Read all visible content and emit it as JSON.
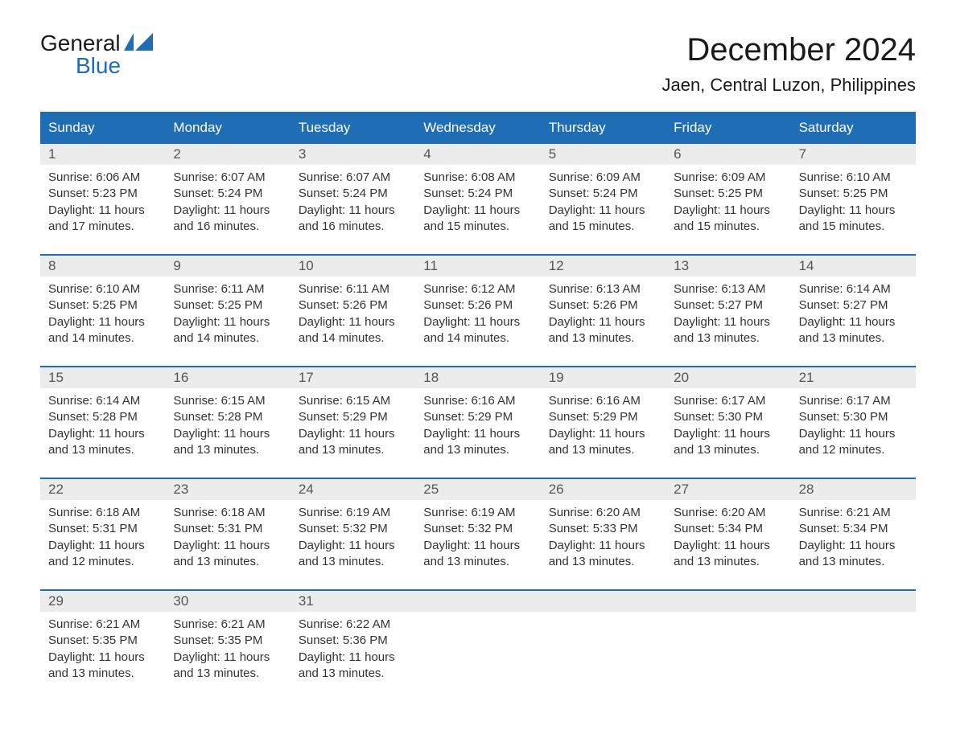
{
  "logo": {
    "text_top": "General",
    "text_bottom": "Blue",
    "icon_color": "#1f6db5"
  },
  "title": "December 2024",
  "location": "Jaen, Central Luzon, Philippines",
  "colors": {
    "header_bg": "#1f6db5",
    "header_text": "#ffffff",
    "daynum_bg": "#ececec",
    "daynum_text": "#555555",
    "body_text": "#333333",
    "divider": "#1f6db5",
    "page_bg": "#ffffff"
  },
  "day_names": [
    "Sunday",
    "Monday",
    "Tuesday",
    "Wednesday",
    "Thursday",
    "Friday",
    "Saturday"
  ],
  "weeks": [
    {
      "days": [
        {
          "num": "1",
          "sunrise": "6:06 AM",
          "sunset": "5:23 PM",
          "daylight": "11 hours and 17 minutes."
        },
        {
          "num": "2",
          "sunrise": "6:07 AM",
          "sunset": "5:24 PM",
          "daylight": "11 hours and 16 minutes."
        },
        {
          "num": "3",
          "sunrise": "6:07 AM",
          "sunset": "5:24 PM",
          "daylight": "11 hours and 16 minutes."
        },
        {
          "num": "4",
          "sunrise": "6:08 AM",
          "sunset": "5:24 PM",
          "daylight": "11 hours and 15 minutes."
        },
        {
          "num": "5",
          "sunrise": "6:09 AM",
          "sunset": "5:24 PM",
          "daylight": "11 hours and 15 minutes."
        },
        {
          "num": "6",
          "sunrise": "6:09 AM",
          "sunset": "5:25 PM",
          "daylight": "11 hours and 15 minutes."
        },
        {
          "num": "7",
          "sunrise": "6:10 AM",
          "sunset": "5:25 PM",
          "daylight": "11 hours and 15 minutes."
        }
      ]
    },
    {
      "days": [
        {
          "num": "8",
          "sunrise": "6:10 AM",
          "sunset": "5:25 PM",
          "daylight": "11 hours and 14 minutes."
        },
        {
          "num": "9",
          "sunrise": "6:11 AM",
          "sunset": "5:25 PM",
          "daylight": "11 hours and 14 minutes."
        },
        {
          "num": "10",
          "sunrise": "6:11 AM",
          "sunset": "5:26 PM",
          "daylight": "11 hours and 14 minutes."
        },
        {
          "num": "11",
          "sunrise": "6:12 AM",
          "sunset": "5:26 PM",
          "daylight": "11 hours and 14 minutes."
        },
        {
          "num": "12",
          "sunrise": "6:13 AM",
          "sunset": "5:26 PM",
          "daylight": "11 hours and 13 minutes."
        },
        {
          "num": "13",
          "sunrise": "6:13 AM",
          "sunset": "5:27 PM",
          "daylight": "11 hours and 13 minutes."
        },
        {
          "num": "14",
          "sunrise": "6:14 AM",
          "sunset": "5:27 PM",
          "daylight": "11 hours and 13 minutes."
        }
      ]
    },
    {
      "days": [
        {
          "num": "15",
          "sunrise": "6:14 AM",
          "sunset": "5:28 PM",
          "daylight": "11 hours and 13 minutes."
        },
        {
          "num": "16",
          "sunrise": "6:15 AM",
          "sunset": "5:28 PM",
          "daylight": "11 hours and 13 minutes."
        },
        {
          "num": "17",
          "sunrise": "6:15 AM",
          "sunset": "5:29 PM",
          "daylight": "11 hours and 13 minutes."
        },
        {
          "num": "18",
          "sunrise": "6:16 AM",
          "sunset": "5:29 PM",
          "daylight": "11 hours and 13 minutes."
        },
        {
          "num": "19",
          "sunrise": "6:16 AM",
          "sunset": "5:29 PM",
          "daylight": "11 hours and 13 minutes."
        },
        {
          "num": "20",
          "sunrise": "6:17 AM",
          "sunset": "5:30 PM",
          "daylight": "11 hours and 13 minutes."
        },
        {
          "num": "21",
          "sunrise": "6:17 AM",
          "sunset": "5:30 PM",
          "daylight": "11 hours and 12 minutes."
        }
      ]
    },
    {
      "days": [
        {
          "num": "22",
          "sunrise": "6:18 AM",
          "sunset": "5:31 PM",
          "daylight": "11 hours and 12 minutes."
        },
        {
          "num": "23",
          "sunrise": "6:18 AM",
          "sunset": "5:31 PM",
          "daylight": "11 hours and 13 minutes."
        },
        {
          "num": "24",
          "sunrise": "6:19 AM",
          "sunset": "5:32 PM",
          "daylight": "11 hours and 13 minutes."
        },
        {
          "num": "25",
          "sunrise": "6:19 AM",
          "sunset": "5:32 PM",
          "daylight": "11 hours and 13 minutes."
        },
        {
          "num": "26",
          "sunrise": "6:20 AM",
          "sunset": "5:33 PM",
          "daylight": "11 hours and 13 minutes."
        },
        {
          "num": "27",
          "sunrise": "6:20 AM",
          "sunset": "5:34 PM",
          "daylight": "11 hours and 13 minutes."
        },
        {
          "num": "28",
          "sunrise": "6:21 AM",
          "sunset": "5:34 PM",
          "daylight": "11 hours and 13 minutes."
        }
      ]
    },
    {
      "days": [
        {
          "num": "29",
          "sunrise": "6:21 AM",
          "sunset": "5:35 PM",
          "daylight": "11 hours and 13 minutes."
        },
        {
          "num": "30",
          "sunrise": "6:21 AM",
          "sunset": "5:35 PM",
          "daylight": "11 hours and 13 minutes."
        },
        {
          "num": "31",
          "sunrise": "6:22 AM",
          "sunset": "5:36 PM",
          "daylight": "11 hours and 13 minutes."
        },
        {
          "num": "",
          "sunrise": "",
          "sunset": "",
          "daylight": ""
        },
        {
          "num": "",
          "sunrise": "",
          "sunset": "",
          "daylight": ""
        },
        {
          "num": "",
          "sunrise": "",
          "sunset": "",
          "daylight": ""
        },
        {
          "num": "",
          "sunrise": "",
          "sunset": "",
          "daylight": ""
        }
      ]
    }
  ],
  "labels": {
    "sunrise": "Sunrise: ",
    "sunset": "Sunset: ",
    "daylight": "Daylight: "
  }
}
